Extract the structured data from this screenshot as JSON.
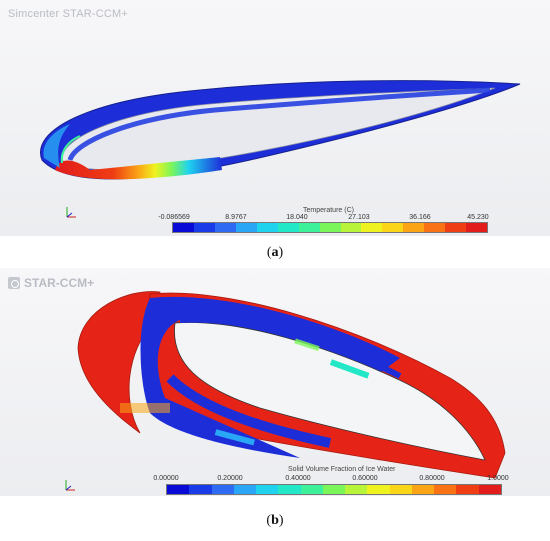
{
  "panel_a": {
    "brand": "Simcenter STAR-CCM+",
    "colorbar_title": "Temperature (C)",
    "ticks": [
      "-0.086569",
      "8.9767",
      "18.040",
      "27.103",
      "36.166",
      "45.230"
    ],
    "caption_letter": "a"
  },
  "panel_b": {
    "brand": "STAR-CCM+",
    "colorbar_title": "Solid Volume Fraction of Ice Water",
    "ticks": [
      "0.00000",
      "0.20000",
      "0.40000",
      "0.60000",
      "0.80000",
      "1.0000"
    ],
    "caption_letter": "b"
  },
  "colors": {
    "ramp": [
      "#0a0ad6",
      "#1a3ce8",
      "#2f6bf2",
      "#29a6f5",
      "#1fd3ef",
      "#22e8c8",
      "#3cf19a",
      "#7af55a",
      "#b8f53a",
      "#eef31f",
      "#fbd618",
      "#fba516",
      "#f97316",
      "#ef3d14",
      "#e21b1b"
    ],
    "cold": "#1d2ed8",
    "hot": "#e52417"
  }
}
